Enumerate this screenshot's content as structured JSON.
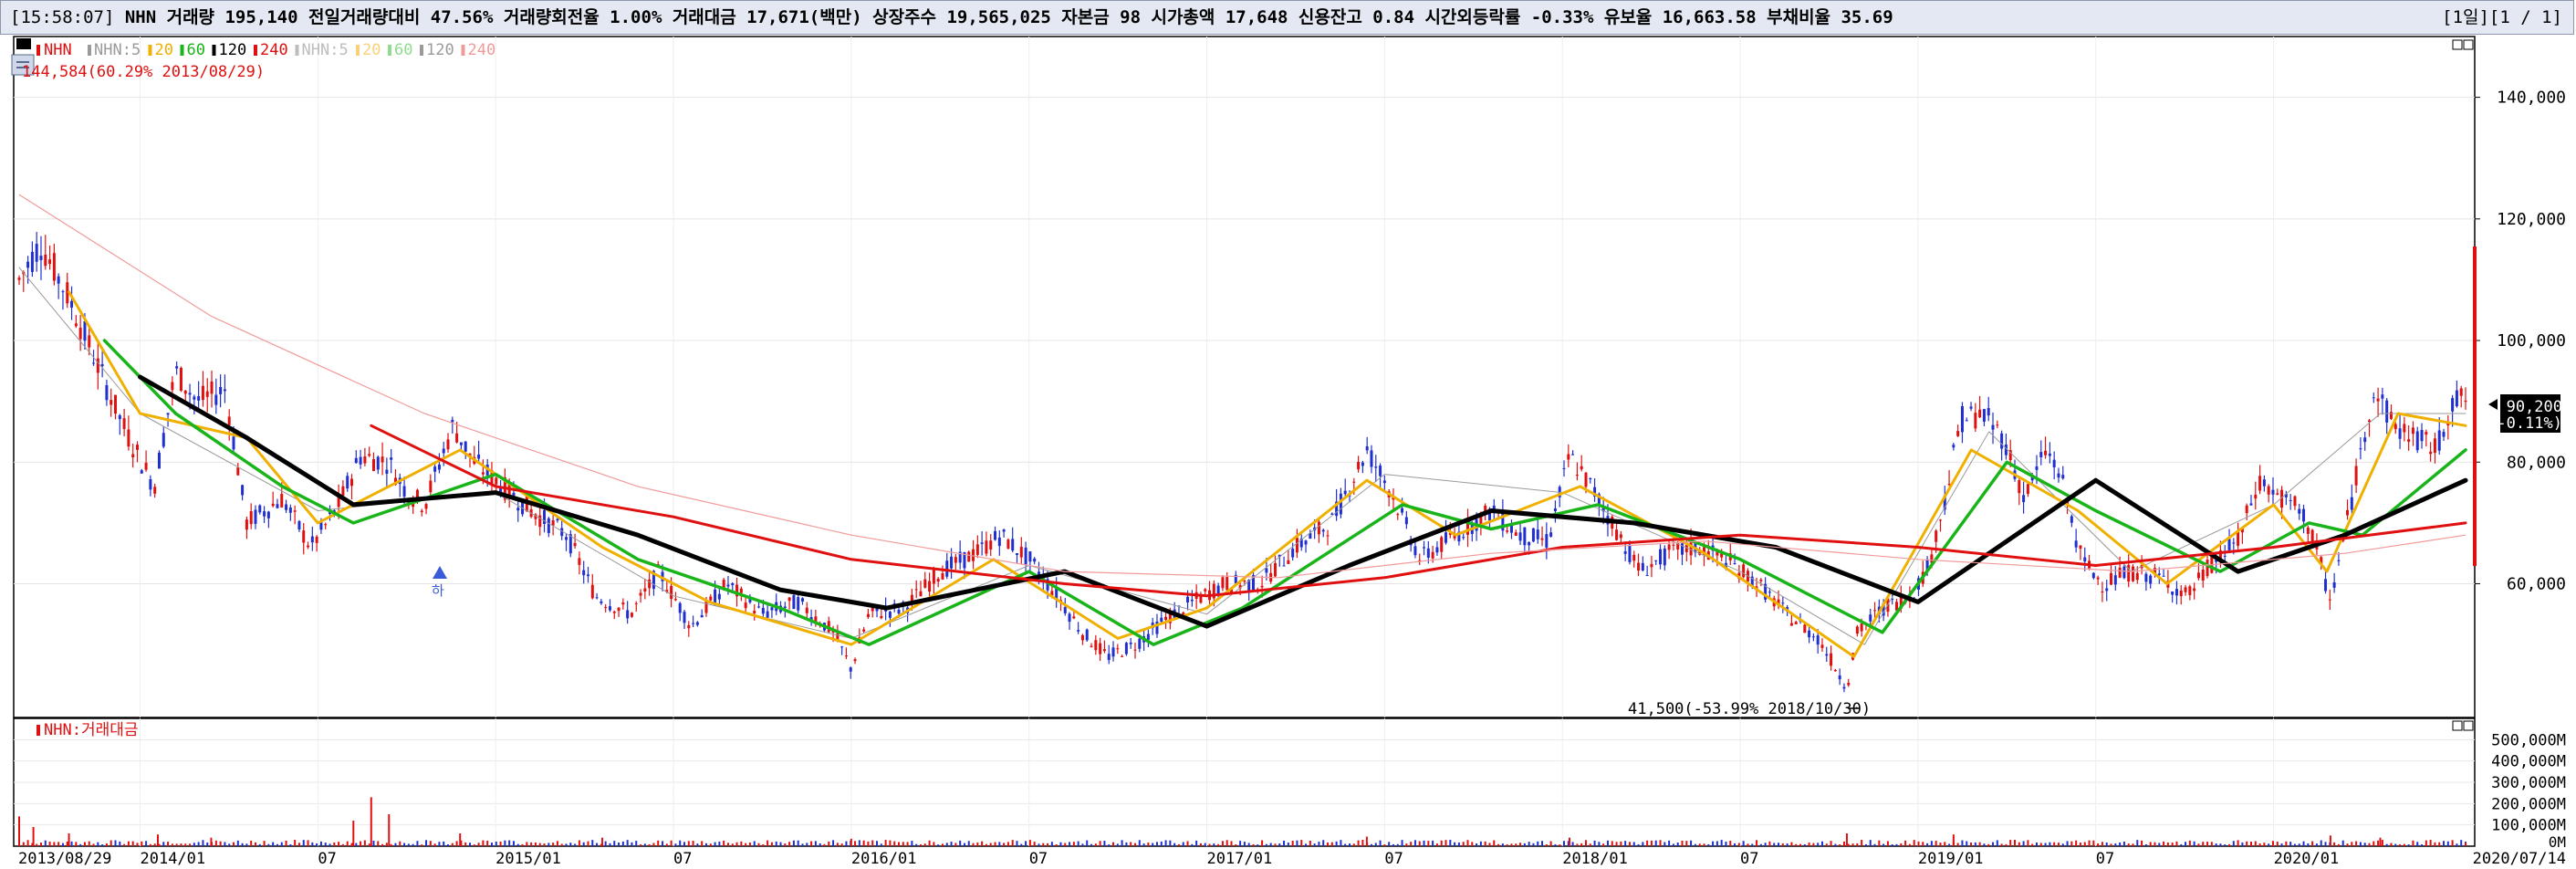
{
  "status": {
    "time": "[15:58:07]",
    "items": "NHN 거래량 195,140 전일거래량대비 47.56% 거래량회전율 1.00% 거래대금 17,671(백만) 상장주수 19,565,025 자본금 98 시가총액 17,648 신용잔고 0.84 시간외등락률 -0.33% 유보율 16,663.58 부채비율 35.69",
    "paging": "[1일][1 / 1]"
  },
  "price_panel": {
    "legend": {
      "name": "NHN",
      "ma_items": [
        {
          "label": "NHN:5",
          "color": "#9a9a9a"
        },
        {
          "label": "20",
          "color": "#f0b000"
        },
        {
          "label": "60",
          "color": "#19b419"
        },
        {
          "label": "120",
          "color": "#000000"
        },
        {
          "label": "240",
          "color": "#e01010"
        }
      ],
      "ma_items2": [
        {
          "label": "NHN:5",
          "color": "#bdbdbd"
        },
        {
          "label": "20",
          "color": "#f7d27a"
        },
        {
          "label": "60",
          "color": "#8fdc8f"
        },
        {
          "label": "120",
          "color": "#9a9a9a"
        },
        {
          "label": "240",
          "color": "#f19a9a"
        }
      ],
      "high_note": "144,584(60.29% 2013/08/29)"
    },
    "low_note": "41,500(-53.99% 2018/10/30)",
    "current_price": "90,200",
    "current_change": "(-0.11%)"
  },
  "volume_panel": {
    "legend": "NHN:거래대금"
  },
  "chart_data": [
    {
      "type": "candlestick",
      "title": "NHN",
      "x_range": [
        "2013/08/29",
        "2020/07/14"
      ],
      "ylim": [
        38000,
        150000
      ],
      "y_ticks": [
        60000,
        80000,
        100000,
        120000,
        140000
      ],
      "y_tick_labels": [
        "60,000",
        "80,000",
        "100,000",
        "120,000",
        "140,000"
      ],
      "x_tick_labels": [
        "2013/08/29",
        "2014/01",
        "07",
        "2015/01",
        "07",
        "2016/01",
        "07",
        "2017/01",
        "07",
        "2018/01",
        "07",
        "2019/01",
        "07",
        "2020/01",
        "2020/07/14"
      ],
      "x_tick_dates": [
        2013.66,
        2014.0,
        2014.5,
        2015.0,
        2015.5,
        2016.0,
        2016.5,
        2017.0,
        2017.5,
        2018.0,
        2018.5,
        2019.0,
        2019.5,
        2020.0,
        2020.54
      ],
      "grid": true,
      "price_path": [
        [
          2013.66,
          110000
        ],
        [
          2013.72,
          116000
        ],
        [
          2013.8,
          107000
        ],
        [
          2013.88,
          96000
        ],
        [
          2013.96,
          85000
        ],
        [
          2014.04,
          76000
        ],
        [
          2014.1,
          95000
        ],
        [
          2014.16,
          90000
        ],
        [
          2014.24,
          92000
        ],
        [
          2014.3,
          70000
        ],
        [
          2014.4,
          74000
        ],
        [
          2014.48,
          66000
        ],
        [
          2014.55,
          72000
        ],
        [
          2014.62,
          81000
        ],
        [
          2014.7,
          80000
        ],
        [
          2014.75,
          75000
        ],
        [
          2014.8,
          73000
        ],
        [
          2014.88,
          86000
        ],
        [
          2014.94,
          80000
        ],
        [
          2015.02,
          76000
        ],
        [
          2015.1,
          72000
        ],
        [
          2015.2,
          68000
        ],
        [
          2015.28,
          58000
        ],
        [
          2015.38,
          55000
        ],
        [
          2015.46,
          62000
        ],
        [
          2015.55,
          53000
        ],
        [
          2015.65,
          60000
        ],
        [
          2015.75,
          55000
        ],
        [
          2015.85,
          57000
        ],
        [
          2015.95,
          52000
        ],
        [
          2016.0,
          46000
        ],
        [
          2016.05,
          55000
        ],
        [
          2016.15,
          56000
        ],
        [
          2016.25,
          62000
        ],
        [
          2016.35,
          65000
        ],
        [
          2016.42,
          68000
        ],
        [
          2016.5,
          64000
        ],
        [
          2016.58,
          58000
        ],
        [
          2016.65,
          52000
        ],
        [
          2016.72,
          48000
        ],
        [
          2016.8,
          50000
        ],
        [
          2016.88,
          54000
        ],
        [
          2016.96,
          57000
        ],
        [
          2017.05,
          60000
        ],
        [
          2017.15,
          60000
        ],
        [
          2017.25,
          66000
        ],
        [
          2017.35,
          70000
        ],
        [
          2017.45,
          82000
        ],
        [
          2017.52,
          75000
        ],
        [
          2017.6,
          64000
        ],
        [
          2017.7,
          68000
        ],
        [
          2017.8,
          72000
        ],
        [
          2017.88,
          68000
        ],
        [
          2017.96,
          67000
        ],
        [
          2018.02,
          81000
        ],
        [
          2018.08,
          76000
        ],
        [
          2018.14,
          70000
        ],
        [
          2018.22,
          62000
        ],
        [
          2018.3,
          65000
        ],
        [
          2018.38,
          66000
        ],
        [
          2018.46,
          64000
        ],
        [
          2018.55,
          60000
        ],
        [
          2018.63,
          55000
        ],
        [
          2018.72,
          51000
        ],
        [
          2018.8,
          43000
        ],
        [
          2018.83,
          52000
        ],
        [
          2018.9,
          56000
        ],
        [
          2018.98,
          58000
        ],
        [
          2019.03,
          63000
        ],
        [
          2019.08,
          75000
        ],
        [
          2019.12,
          87000
        ],
        [
          2019.18,
          88000
        ],
        [
          2019.24,
          84000
        ],
        [
          2019.3,
          74000
        ],
        [
          2019.36,
          82000
        ],
        [
          2019.4,
          78000
        ],
        [
          2019.46,
          64000
        ],
        [
          2019.52,
          60000
        ],
        [
          2019.6,
          62000
        ],
        [
          2019.68,
          61000
        ],
        [
          2019.76,
          58000
        ],
        [
          2019.82,
          63000
        ],
        [
          2019.9,
          67000
        ],
        [
          2019.96,
          77000
        ],
        [
          2020.02,
          74000
        ],
        [
          2020.08,
          72000
        ],
        [
          2020.12,
          66000
        ],
        [
          2020.16,
          57000
        ],
        [
          2020.22,
          74000
        ],
        [
          2020.28,
          92000
        ],
        [
          2020.34,
          86000
        ],
        [
          2020.4,
          84000
        ],
        [
          2020.46,
          82000
        ],
        [
          2020.5,
          90000
        ],
        [
          2020.54,
          90200
        ]
      ],
      "series": [
        {
          "name": "NHN:5",
          "color": "#9a9a9a",
          "values": [
            [
              2013.66,
              112000
            ],
            [
              2014.0,
              88000
            ],
            [
              2014.5,
              72000
            ],
            [
              2015.0,
              75000
            ],
            [
              2015.5,
              58000
            ],
            [
              2016.0,
              51000
            ],
            [
              2016.5,
              63000
            ],
            [
              2017.0,
              55000
            ],
            [
              2017.5,
              78000
            ],
            [
              2018.0,
              75000
            ],
            [
              2018.5,
              62000
            ],
            [
              2018.85,
              50000
            ],
            [
              2019.2,
              85000
            ],
            [
              2019.6,
              62000
            ],
            [
              2020.0,
              73000
            ],
            [
              2020.3,
              88000
            ],
            [
              2020.54,
              88000
            ]
          ]
        },
        {
          "name": "20",
          "color": "#f0b000",
          "values": [
            [
              2013.8,
              108000
            ],
            [
              2014.0,
              88000
            ],
            [
              2014.3,
              84000
            ],
            [
              2014.5,
              70000
            ],
            [
              2014.9,
              82000
            ],
            [
              2015.3,
              66000
            ],
            [
              2015.6,
              57000
            ],
            [
              2016.0,
              50000
            ],
            [
              2016.4,
              64000
            ],
            [
              2016.75,
              51000
            ],
            [
              2017.0,
              56000
            ],
            [
              2017.45,
              77000
            ],
            [
              2017.7,
              68000
            ],
            [
              2018.05,
              76000
            ],
            [
              2018.4,
              65000
            ],
            [
              2018.82,
              48000
            ],
            [
              2019.15,
              82000
            ],
            [
              2019.45,
              72000
            ],
            [
              2019.7,
              60000
            ],
            [
              2020.0,
              73000
            ],
            [
              2020.15,
              62000
            ],
            [
              2020.35,
              88000
            ],
            [
              2020.54,
              86000
            ]
          ]
        },
        {
          "name": "60",
          "color": "#19b419",
          "values": [
            [
              2013.9,
              100000
            ],
            [
              2014.1,
              88000
            ],
            [
              2014.4,
              76000
            ],
            [
              2014.6,
              70000
            ],
            [
              2015.0,
              78000
            ],
            [
              2015.4,
              64000
            ],
            [
              2015.8,
              56000
            ],
            [
              2016.05,
              50000
            ],
            [
              2016.5,
              62000
            ],
            [
              2016.85,
              50000
            ],
            [
              2017.1,
              56000
            ],
            [
              2017.55,
              73000
            ],
            [
              2017.8,
              69000
            ],
            [
              2018.1,
              73000
            ],
            [
              2018.5,
              64000
            ],
            [
              2018.9,
              52000
            ],
            [
              2019.25,
              80000
            ],
            [
              2019.5,
              72000
            ],
            [
              2019.85,
              62000
            ],
            [
              2020.1,
              70000
            ],
            [
              2020.25,
              68000
            ],
            [
              2020.54,
              82000
            ]
          ]
        },
        {
          "name": "120",
          "color": "#000000",
          "values": [
            [
              2014.0,
              94000
            ],
            [
              2014.3,
              84000
            ],
            [
              2014.6,
              73000
            ],
            [
              2015.0,
              75000
            ],
            [
              2015.4,
              68000
            ],
            [
              2015.8,
              59000
            ],
            [
              2016.1,
              56000
            ],
            [
              2016.6,
              62000
            ],
            [
              2017.0,
              53000
            ],
            [
              2017.4,
              63000
            ],
            [
              2017.8,
              72000
            ],
            [
              2018.2,
              70000
            ],
            [
              2018.6,
              66000
            ],
            [
              2019.0,
              57000
            ],
            [
              2019.5,
              77000
            ],
            [
              2019.9,
              62000
            ],
            [
              2020.2,
              68000
            ],
            [
              2020.54,
              77000
            ]
          ]
        },
        {
          "name": "240",
          "color": "#e01010",
          "values": [
            [
              2014.65,
              86000
            ],
            [
              2015.0,
              76000
            ],
            [
              2015.5,
              71000
            ],
            [
              2016.0,
              64000
            ],
            [
              2016.6,
              60000
            ],
            [
              2017.0,
              58000
            ],
            [
              2017.5,
              61000
            ],
            [
              2018.0,
              66000
            ],
            [
              2018.5,
              68000
            ],
            [
              2019.0,
              66000
            ],
            [
              2019.5,
              63000
            ],
            [
              2020.0,
              66000
            ],
            [
              2020.54,
              70000
            ]
          ]
        }
      ],
      "annotations": [
        "144,584(60.29% 2013/08/29)",
        "41,500(-53.99% 2018/10/30)",
        "90,200",
        "(-0.11%)"
      ]
    },
    {
      "type": "bar",
      "title": "NHN:거래대금",
      "ylim": [
        0,
        600000
      ],
      "y_ticks": [
        100000,
        200000,
        300000,
        400000,
        500000
      ],
      "y_tick_labels": [
        "100,000M",
        "200,000M",
        "300,000M",
        "400,000M",
        "500,000M"
      ],
      "zero_label": "0M",
      "grid": true,
      "volume_spikes": [
        [
          2013.66,
          140000
        ],
        [
          2013.7,
          90000
        ],
        [
          2013.8,
          60000
        ],
        [
          2014.05,
          55000
        ],
        [
          2014.2,
          40000
        ],
        [
          2014.6,
          120000
        ],
        [
          2014.65,
          230000
        ],
        [
          2014.7,
          150000
        ],
        [
          2014.9,
          60000
        ],
        [
          2015.3,
          40000
        ],
        [
          2016.0,
          35000
        ],
        [
          2017.45,
          45000
        ],
        [
          2018.02,
          40000
        ],
        [
          2018.8,
          60000
        ],
        [
          2019.1,
          55000
        ],
        [
          2020.16,
          50000
        ],
        [
          2020.3,
          40000
        ],
        [
          2020.54,
          17671
        ]
      ]
    }
  ]
}
